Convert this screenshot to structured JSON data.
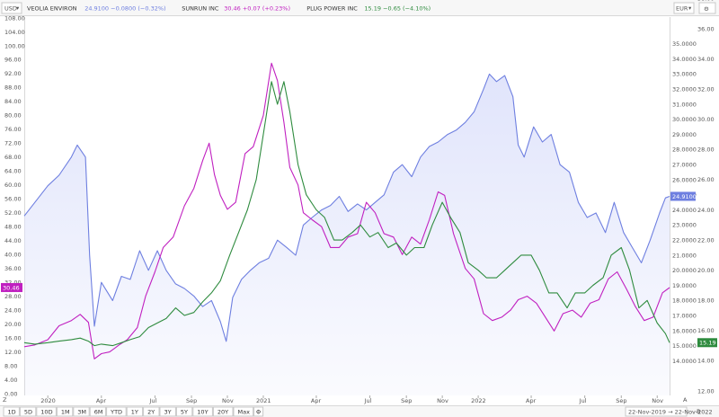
{
  "header": {
    "left_currency": "USD",
    "right_currency": "EUR",
    "legend": [
      {
        "name": "VEOLIA ENVIRON",
        "value": "24.9100",
        "change": "−0.0800 (−0.32%)",
        "color": "#6e7fe0"
      },
      {
        "name": "SUNRUN INC",
        "value": "30.46",
        "change": "+0.07 (+0.23%)",
        "color": "#c020c0"
      },
      {
        "name": "PLUG POWER INC",
        "value": "15.19",
        "change": "−0.65 (−4.10%)",
        "color": "#2e8b3e"
      }
    ]
  },
  "footer": {
    "periods": [
      "1D",
      "5D",
      "10D",
      "1M",
      "3M",
      "6M",
      "YTD",
      "1Y",
      "2Y",
      "3Y",
      "5Y",
      "10Y",
      "20Y",
      "Max"
    ],
    "active_period": "3Y",
    "date_range": "22-Nov-2019 → 22-Nov-2022",
    "z_label": "Z",
    "a_label": "A",
    "b_label": "B"
  },
  "colors": {
    "veolia": "#6e7fe0",
    "sunrun": "#c020c0",
    "plug": "#2e8b3e",
    "veolia_fill": "#dfe3fb"
  },
  "chart_data": {
    "type": "line",
    "x_range": [
      "2019-11-22",
      "2022-11-22"
    ],
    "x_ticks": [
      {
        "date": "2020-01-01",
        "label": "2020"
      },
      {
        "date": "2020-04-01",
        "label": "Apr"
      },
      {
        "date": "2020-07-01",
        "label": "Jul"
      },
      {
        "date": "2020-09-01",
        "label": "Sep"
      },
      {
        "date": "2020-11-01",
        "label": "Nov"
      },
      {
        "date": "2021-01-01",
        "label": "2021"
      },
      {
        "date": "2021-04-01",
        "label": "Apr"
      },
      {
        "date": "2021-07-01",
        "label": "Jul"
      },
      {
        "date": "2021-09-01",
        "label": "Sep"
      },
      {
        "date": "2021-11-01",
        "label": "Nov"
      },
      {
        "date": "2022-01-01",
        "label": "2022"
      },
      {
        "date": "2022-04-01",
        "label": "Apr"
      },
      {
        "date": "2022-07-01",
        "label": "Jul"
      },
      {
        "date": "2022-09-01",
        "label": "Sep"
      },
      {
        "date": "2022-11-01",
        "label": "Nov"
      }
    ],
    "left_axis": {
      "unit": "USD",
      "ylim": [
        0,
        108
      ],
      "ticks": [
        0.0,
        4.0,
        8.0,
        12.0,
        16.0,
        20.0,
        24.0,
        28.0,
        32.0,
        36.0,
        40.0,
        44.0,
        48.0,
        52.0,
        56.0,
        60.0,
        64.0,
        68.0,
        72.0,
        76.0,
        80.0,
        84.0,
        88.0,
        92.0,
        96.0,
        100.0,
        104.0,
        108.0
      ]
    },
    "right_axis_outer": {
      "unit": "EUR",
      "ylim": [
        12,
        36
      ],
      "ticks": [
        12.0,
        14.0,
        16.0,
        18.0,
        20.0,
        22.0,
        24.0,
        26.0,
        28.0,
        30.0,
        32.0,
        34.0,
        36.0,
        38.0,
        40.0
      ]
    },
    "right_axis_inner": {
      "ylim": [
        13.5,
        36
      ],
      "ticks": [
        14.0,
        15.0,
        16.0,
        17.0,
        18.0,
        19.0,
        20.0,
        21.0,
        22.0,
        23.0,
        24.0,
        25.0,
        26.0,
        27.0,
        28.0,
        29.0,
        30.0,
        31.0,
        32.0,
        33.0,
        34.0,
        35.0
      ]
    },
    "series": [
      {
        "name": "VEOLIA ENVIRON",
        "axis": "right_inner",
        "last_value": "24.9100",
        "points": [
          [
            "2019-11-22",
            23.6
          ],
          [
            "2019-12-10",
            24.5
          ],
          [
            "2020-01-01",
            25.6
          ],
          [
            "2020-01-20",
            26.3
          ],
          [
            "2020-02-10",
            27.5
          ],
          [
            "2020-02-20",
            28.3
          ],
          [
            "2020-03-05",
            27.5
          ],
          [
            "2020-03-12",
            21.0
          ],
          [
            "2020-03-20",
            16.3
          ],
          [
            "2020-04-01",
            19.2
          ],
          [
            "2020-04-20",
            18.0
          ],
          [
            "2020-05-05",
            19.6
          ],
          [
            "2020-05-20",
            19.4
          ],
          [
            "2020-06-05",
            21.3
          ],
          [
            "2020-06-20",
            20.0
          ],
          [
            "2020-07-05",
            21.3
          ],
          [
            "2020-07-20",
            20.0
          ],
          [
            "2020-08-05",
            19.1
          ],
          [
            "2020-08-20",
            18.8
          ],
          [
            "2020-09-05",
            18.3
          ],
          [
            "2020-09-20",
            17.6
          ],
          [
            "2020-10-05",
            18.0
          ],
          [
            "2020-10-20",
            16.6
          ],
          [
            "2020-10-30",
            15.3
          ],
          [
            "2020-11-10",
            18.2
          ],
          [
            "2020-11-25",
            19.4
          ],
          [
            "2020-12-10",
            20.0
          ],
          [
            "2020-12-25",
            20.5
          ],
          [
            "2021-01-10",
            20.8
          ],
          [
            "2021-01-25",
            22.0
          ],
          [
            "2021-02-10",
            21.5
          ],
          [
            "2021-02-25",
            21.0
          ],
          [
            "2021-03-10",
            23.0
          ],
          [
            "2021-03-25",
            23.5
          ],
          [
            "2021-04-10",
            24.0
          ],
          [
            "2021-04-25",
            24.3
          ],
          [
            "2021-05-10",
            24.9
          ],
          [
            "2021-05-25",
            23.9
          ],
          [
            "2021-06-10",
            24.4
          ],
          [
            "2021-06-25",
            24.0
          ],
          [
            "2021-07-10",
            24.5
          ],
          [
            "2021-07-25",
            25.0
          ],
          [
            "2021-08-10",
            26.5
          ],
          [
            "2021-08-25",
            27.0
          ],
          [
            "2021-09-10",
            26.2
          ],
          [
            "2021-09-25",
            27.5
          ],
          [
            "2021-10-10",
            28.2
          ],
          [
            "2021-10-25",
            28.5
          ],
          [
            "2021-11-10",
            29.0
          ],
          [
            "2021-11-25",
            29.3
          ],
          [
            "2021-12-10",
            29.8
          ],
          [
            "2021-12-25",
            30.5
          ],
          [
            "2022-01-10",
            32.0
          ],
          [
            "2022-01-20",
            33.0
          ],
          [
            "2022-02-01",
            32.5
          ],
          [
            "2022-02-15",
            32.9
          ],
          [
            "2022-03-01",
            31.5
          ],
          [
            "2022-03-10",
            28.3
          ],
          [
            "2022-03-20",
            27.5
          ],
          [
            "2022-04-05",
            29.5
          ],
          [
            "2022-04-20",
            28.5
          ],
          [
            "2022-05-05",
            29.0
          ],
          [
            "2022-05-20",
            27.0
          ],
          [
            "2022-06-05",
            26.5
          ],
          [
            "2022-06-20",
            24.5
          ],
          [
            "2022-07-05",
            23.5
          ],
          [
            "2022-07-20",
            23.8
          ],
          [
            "2022-08-05",
            22.5
          ],
          [
            "2022-08-20",
            24.5
          ],
          [
            "2022-09-05",
            22.5
          ],
          [
            "2022-09-20",
            21.5
          ],
          [
            "2022-10-05",
            20.5
          ],
          [
            "2022-10-20",
            22.0
          ],
          [
            "2022-11-05",
            23.8
          ],
          [
            "2022-11-15",
            24.8
          ],
          [
            "2022-11-22",
            24.9
          ]
        ]
      },
      {
        "name": "SUNRUN INC",
        "axis": "left",
        "last_value": "30.46",
        "points": [
          [
            "2019-11-22",
            13.5
          ],
          [
            "2019-12-10",
            14.0
          ],
          [
            "2020-01-01",
            15.5
          ],
          [
            "2020-01-20",
            19.5
          ],
          [
            "2020-02-10",
            21.0
          ],
          [
            "2020-02-25",
            22.8
          ],
          [
            "2020-03-10",
            20.5
          ],
          [
            "2020-03-20",
            10.0
          ],
          [
            "2020-04-01",
            11.5
          ],
          [
            "2020-04-15",
            12.0
          ],
          [
            "2020-05-01",
            14.0
          ],
          [
            "2020-05-15",
            15.5
          ],
          [
            "2020-06-01",
            19.0
          ],
          [
            "2020-06-15",
            28.0
          ],
          [
            "2020-07-01",
            35.0
          ],
          [
            "2020-07-15",
            42.0
          ],
          [
            "2020-08-01",
            45.0
          ],
          [
            "2020-08-20",
            54.0
          ],
          [
            "2020-09-05",
            59.0
          ],
          [
            "2020-09-20",
            67.0
          ],
          [
            "2020-10-01",
            72.0
          ],
          [
            "2020-10-10",
            63.0
          ],
          [
            "2020-10-20",
            57.0
          ],
          [
            "2020-11-01",
            53.0
          ],
          [
            "2020-11-15",
            55.0
          ],
          [
            "2020-12-01",
            69.0
          ],
          [
            "2020-12-15",
            71.0
          ],
          [
            "2021-01-01",
            80.0
          ],
          [
            "2021-01-15",
            95.0
          ],
          [
            "2021-01-25",
            90.0
          ],
          [
            "2021-02-05",
            78.0
          ],
          [
            "2021-02-15",
            65.0
          ],
          [
            "2021-03-01",
            60.0
          ],
          [
            "2021-03-10",
            52.0
          ],
          [
            "2021-03-25",
            50.0
          ],
          [
            "2021-04-10",
            48.0
          ],
          [
            "2021-04-25",
            42.0
          ],
          [
            "2021-05-10",
            42.0
          ],
          [
            "2021-05-25",
            45.0
          ],
          [
            "2021-06-10",
            46.0
          ],
          [
            "2021-06-25",
            55.0
          ],
          [
            "2021-07-10",
            52.0
          ],
          [
            "2021-07-25",
            46.0
          ],
          [
            "2021-08-10",
            45.0
          ],
          [
            "2021-08-25",
            40.0
          ],
          [
            "2021-09-10",
            45.0
          ],
          [
            "2021-09-25",
            43.0
          ],
          [
            "2021-10-10",
            50.0
          ],
          [
            "2021-10-25",
            58.0
          ],
          [
            "2021-11-05",
            57.0
          ],
          [
            "2021-11-20",
            46.0
          ],
          [
            "2021-12-10",
            36.0
          ],
          [
            "2021-12-25",
            33.0
          ],
          [
            "2022-01-10",
            23.0
          ],
          [
            "2022-01-25",
            21.0
          ],
          [
            "2022-02-10",
            22.0
          ],
          [
            "2022-02-25",
            24.0
          ],
          [
            "2022-03-10",
            27.0
          ],
          [
            "2022-03-25",
            28.0
          ],
          [
            "2022-04-10",
            26.0
          ],
          [
            "2022-04-25",
            22.0
          ],
          [
            "2022-05-10",
            18.0
          ],
          [
            "2022-05-25",
            23.0
          ],
          [
            "2022-06-10",
            24.0
          ],
          [
            "2022-06-25",
            22.0
          ],
          [
            "2022-07-10",
            26.0
          ],
          [
            "2022-07-25",
            27.0
          ],
          [
            "2022-08-10",
            33.0
          ],
          [
            "2022-08-25",
            35.0
          ],
          [
            "2022-09-10",
            30.0
          ],
          [
            "2022-09-25",
            25.0
          ],
          [
            "2022-10-10",
            21.0
          ],
          [
            "2022-10-25",
            22.0
          ],
          [
            "2022-11-10",
            29.0
          ],
          [
            "2022-11-22",
            30.5
          ]
        ]
      },
      {
        "name": "PLUG POWER INC",
        "axis": "right_outer",
        "last_value": "15.19",
        "points": [
          [
            "2019-11-22",
            15.2
          ],
          [
            "2019-12-10",
            15.1
          ],
          [
            "2020-01-01",
            15.2
          ],
          [
            "2020-01-20",
            15.3
          ],
          [
            "2020-02-10",
            15.4
          ],
          [
            "2020-02-25",
            15.5
          ],
          [
            "2020-03-10",
            15.3
          ],
          [
            "2020-03-20",
            15.0
          ],
          [
            "2020-04-01",
            15.1
          ],
          [
            "2020-04-20",
            15.0
          ],
          [
            "2020-05-05",
            15.2
          ],
          [
            "2020-05-20",
            15.4
          ],
          [
            "2020-06-05",
            15.6
          ],
          [
            "2020-06-20",
            16.2
          ],
          [
            "2020-07-05",
            16.5
          ],
          [
            "2020-07-20",
            16.8
          ],
          [
            "2020-08-05",
            17.5
          ],
          [
            "2020-08-20",
            17.0
          ],
          [
            "2020-09-05",
            17.2
          ],
          [
            "2020-09-20",
            17.9
          ],
          [
            "2020-10-05",
            18.5
          ],
          [
            "2020-10-20",
            19.3
          ],
          [
            "2020-11-05",
            21.0
          ],
          [
            "2020-11-20",
            22.5
          ],
          [
            "2020-12-05",
            24.0
          ],
          [
            "2020-12-20",
            26.0
          ],
          [
            "2021-01-05",
            30.0
          ],
          [
            "2021-01-15",
            32.5
          ],
          [
            "2021-01-25",
            31.0
          ],
          [
            "2021-02-05",
            32.5
          ],
          [
            "2021-02-15",
            30.5
          ],
          [
            "2021-03-01",
            27.0
          ],
          [
            "2021-03-15",
            25.0
          ],
          [
            "2021-04-01",
            24.0
          ],
          [
            "2021-04-15",
            23.5
          ],
          [
            "2021-05-01",
            22.0
          ],
          [
            "2021-05-15",
            22.0
          ],
          [
            "2021-06-01",
            22.5
          ],
          [
            "2021-06-15",
            23.0
          ],
          [
            "2021-07-01",
            22.2
          ],
          [
            "2021-07-15",
            22.5
          ],
          [
            "2021-08-01",
            21.5
          ],
          [
            "2021-08-15",
            21.8
          ],
          [
            "2021-09-01",
            21.0
          ],
          [
            "2021-09-15",
            21.5
          ],
          [
            "2021-10-01",
            21.5
          ],
          [
            "2021-10-15",
            23.0
          ],
          [
            "2021-11-01",
            24.5
          ],
          [
            "2021-11-15",
            23.5
          ],
          [
            "2021-12-01",
            22.5
          ],
          [
            "2021-12-15",
            20.5
          ],
          [
            "2022-01-01",
            20.0
          ],
          [
            "2022-01-15",
            19.5
          ],
          [
            "2022-02-01",
            19.5
          ],
          [
            "2022-02-15",
            20.0
          ],
          [
            "2022-03-01",
            20.5
          ],
          [
            "2022-03-15",
            21.0
          ],
          [
            "2022-04-01",
            21.0
          ],
          [
            "2022-04-15",
            20.0
          ],
          [
            "2022-05-01",
            18.5
          ],
          [
            "2022-05-15",
            18.5
          ],
          [
            "2022-06-01",
            17.5
          ],
          [
            "2022-06-15",
            18.5
          ],
          [
            "2022-07-01",
            18.5
          ],
          [
            "2022-07-15",
            19.0
          ],
          [
            "2022-08-01",
            19.5
          ],
          [
            "2022-08-15",
            21.0
          ],
          [
            "2022-09-01",
            21.5
          ],
          [
            "2022-09-15",
            20.0
          ],
          [
            "2022-10-01",
            17.5
          ],
          [
            "2022-10-15",
            18.0
          ],
          [
            "2022-11-01",
            16.5
          ],
          [
            "2022-11-15",
            15.8
          ],
          [
            "2022-11-22",
            15.2
          ]
        ]
      }
    ]
  }
}
